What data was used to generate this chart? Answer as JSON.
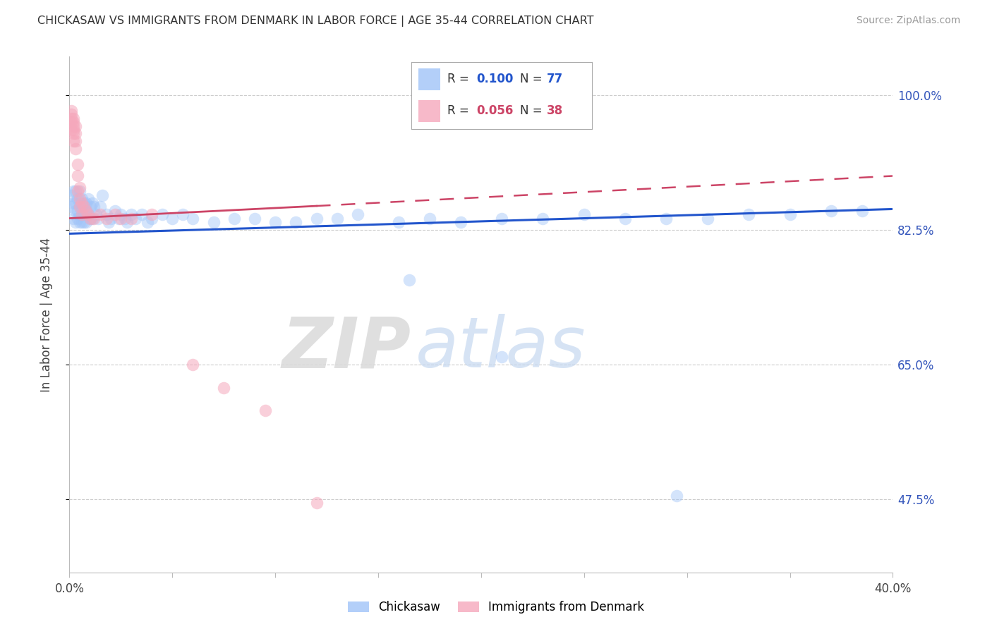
{
  "title": "CHICKASAW VS IMMIGRANTS FROM DENMARK IN LABOR FORCE | AGE 35-44 CORRELATION CHART",
  "source": "Source: ZipAtlas.com",
  "ylabel": "In Labor Force | Age 35-44",
  "xlim": [
    0.0,
    0.4
  ],
  "ylim": [
    0.38,
    1.05
  ],
  "xtick_pos": [
    0.0,
    0.05,
    0.1,
    0.15,
    0.2,
    0.25,
    0.3,
    0.35,
    0.4
  ],
  "xticklabels": [
    "0.0%",
    "",
    "",
    "",
    "",
    "",
    "",
    "",
    "40.0%"
  ],
  "ytick_positions": [
    0.475,
    0.65,
    0.825,
    1.0
  ],
  "ytick_labels": [
    "47.5%",
    "65.0%",
    "82.5%",
    "100.0%"
  ],
  "chickasaw_color": "#a0c4f8",
  "denmark_color": "#f5a8bc",
  "trend_blue": "#2255cc",
  "trend_pink": "#cc4466",
  "R_blue": "0.100",
  "N_blue": "77",
  "R_pink": "0.056",
  "N_pink": "38",
  "watermark_zip": "ZIP",
  "watermark_atlas": "atlas",
  "chickasaw_x": [
    0.001,
    0.001,
    0.002,
    0.002,
    0.002,
    0.003,
    0.003,
    0.003,
    0.003,
    0.004,
    0.004,
    0.004,
    0.005,
    0.005,
    0.005,
    0.005,
    0.006,
    0.006,
    0.006,
    0.007,
    0.007,
    0.007,
    0.008,
    0.008,
    0.008,
    0.009,
    0.009,
    0.01,
    0.01,
    0.011,
    0.011,
    0.012,
    0.013,
    0.014,
    0.015,
    0.016,
    0.018,
    0.019,
    0.02,
    0.022,
    0.024,
    0.025,
    0.027,
    0.028,
    0.03,
    0.032,
    0.035,
    0.038,
    0.04,
    0.045,
    0.05,
    0.055,
    0.06,
    0.07,
    0.08,
    0.09,
    0.1,
    0.11,
    0.12,
    0.13,
    0.14,
    0.16,
    0.175,
    0.19,
    0.21,
    0.23,
    0.25,
    0.27,
    0.29,
    0.31,
    0.33,
    0.35,
    0.37,
    0.385,
    0.21,
    0.165,
    0.295
  ],
  "chickasaw_y": [
    0.87,
    0.855,
    0.875,
    0.86,
    0.84,
    0.875,
    0.86,
    0.85,
    0.835,
    0.865,
    0.85,
    0.84,
    0.875,
    0.86,
    0.845,
    0.835,
    0.865,
    0.85,
    0.835,
    0.86,
    0.845,
    0.835,
    0.86,
    0.85,
    0.835,
    0.865,
    0.845,
    0.855,
    0.84,
    0.86,
    0.84,
    0.855,
    0.845,
    0.84,
    0.855,
    0.87,
    0.845,
    0.835,
    0.84,
    0.85,
    0.84,
    0.845,
    0.84,
    0.835,
    0.845,
    0.84,
    0.845,
    0.835,
    0.84,
    0.845,
    0.84,
    0.845,
    0.84,
    0.835,
    0.84,
    0.84,
    0.835,
    0.835,
    0.84,
    0.84,
    0.845,
    0.835,
    0.84,
    0.835,
    0.84,
    0.84,
    0.845,
    0.84,
    0.84,
    0.84,
    0.845,
    0.845,
    0.85,
    0.85,
    0.66,
    0.76,
    0.48
  ],
  "denmark_x": [
    0.001,
    0.001,
    0.001,
    0.001,
    0.001,
    0.002,
    0.002,
    0.002,
    0.002,
    0.002,
    0.002,
    0.003,
    0.003,
    0.003,
    0.003,
    0.004,
    0.004,
    0.004,
    0.005,
    0.005,
    0.005,
    0.006,
    0.006,
    0.007,
    0.008,
    0.009,
    0.01,
    0.012,
    0.015,
    0.018,
    0.022,
    0.025,
    0.03,
    0.04,
    0.06,
    0.075,
    0.095,
    0.12
  ],
  "denmark_y": [
    0.98,
    0.975,
    0.97,
    0.965,
    0.955,
    0.97,
    0.96,
    0.95,
    0.94,
    0.965,
    0.955,
    0.96,
    0.95,
    0.94,
    0.93,
    0.91,
    0.895,
    0.875,
    0.88,
    0.865,
    0.855,
    0.86,
    0.845,
    0.855,
    0.85,
    0.845,
    0.84,
    0.84,
    0.845,
    0.84,
    0.845,
    0.84,
    0.84,
    0.845,
    0.65,
    0.62,
    0.59,
    0.47
  ]
}
